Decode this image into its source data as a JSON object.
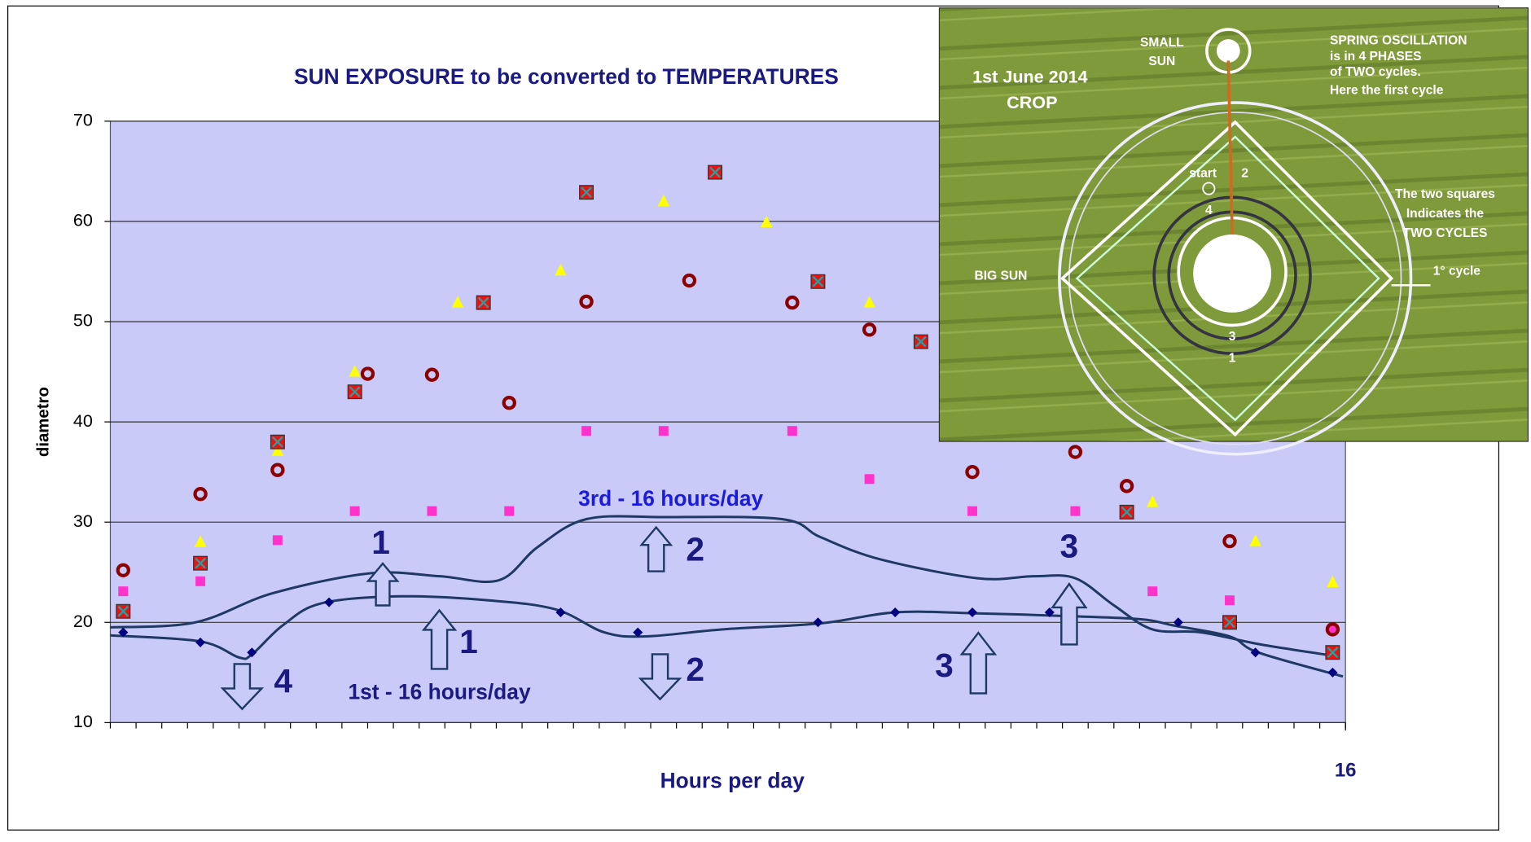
{
  "chart_data": {
    "type": "scatter",
    "title": "SUN EXPOSURE to be converted to TEMPERATURES",
    "xlabel": "Hours per day",
    "ylabel": "diametro",
    "xlim": [
      0,
      48
    ],
    "ylim": [
      10,
      70
    ],
    "yticks": [
      10,
      20,
      30,
      40,
      50,
      60,
      70
    ],
    "xticks": [
      {
        "value": 48,
        "label": "16"
      }
    ],
    "xminorticks": [
      0,
      1,
      2,
      3,
      4,
      5,
      6,
      7,
      8,
      9,
      10,
      11,
      12,
      13,
      14,
      15,
      16,
      17,
      18,
      19,
      20,
      21,
      22,
      23,
      24,
      25,
      26,
      27,
      28,
      29,
      30,
      31,
      32,
      33,
      34,
      35,
      36,
      37,
      38,
      39,
      40,
      41,
      42,
      43,
      44,
      45,
      46,
      47,
      48
    ],
    "grid": true,
    "series": [
      {
        "marker": "square",
        "color": "#ff33cc",
        "x": [
          0.5,
          3.5,
          6.5,
          9.5,
          12.5,
          15.5,
          18.5,
          21.5,
          26.5,
          29.5,
          33.5,
          37.5,
          40.5,
          43.5,
          47.5
        ],
        "values": [
          23.1,
          24.1,
          28.2,
          31.1,
          31.1,
          31.1,
          39.1,
          39.1,
          39.1,
          34.3,
          31.1,
          31.1,
          23.1,
          22.2,
          19.4
        ]
      },
      {
        "marker": "triangle",
        "color": "#ffff00",
        "x": [
          0.5,
          3.5,
          6.5,
          9.5,
          13.5,
          17.5,
          21.5,
          25.5,
          29.5,
          40.5,
          44.5,
          47.5
        ],
        "values": [
          21,
          28,
          37.1,
          45,
          51.9,
          55.1,
          62,
          59.9,
          51.9,
          32,
          28.1,
          24
        ]
      },
      {
        "marker": "boxx",
        "color": "#ee1111",
        "x": [
          0.5,
          3.5,
          6.5,
          9.5,
          14.5,
          18.5,
          23.5,
          27.5,
          31.5,
          39.5,
          43.5,
          47.5
        ],
        "values": [
          21.1,
          25.9,
          38,
          43,
          51.9,
          62.9,
          64.9,
          54,
          48,
          31,
          20,
          17
        ]
      },
      {
        "marker": "ring",
        "color": "#8b0000",
        "x": [
          0.5,
          3.5,
          6.5,
          10,
          12.5,
          15.5,
          18.5,
          22.5,
          26.5,
          29.5,
          33.5,
          37.5,
          39.5,
          43.5,
          47.5
        ],
        "values": [
          25.2,
          32.8,
          35.2,
          44.8,
          44.7,
          41.9,
          52,
          54.1,
          51.9,
          49.2,
          35,
          37,
          33.6,
          28.1,
          19.3
        ]
      },
      {
        "marker": "diamond",
        "color": "#000080",
        "x": [
          0.5,
          3.5,
          5.5,
          8.5,
          17.5,
          20.5,
          27.5,
          30.5,
          33.5,
          36.5,
          41.5,
          44.5,
          47.5
        ],
        "values": [
          19,
          18,
          17,
          22,
          21,
          19,
          20,
          21,
          21,
          21,
          20,
          17,
          15
        ]
      }
    ],
    "lines": [
      {
        "color": "#1f3864",
        "x": [
          0,
          3.5,
          5,
          5.5,
          6.7,
          8.2,
          11.3,
          14.7,
          17.3,
          19.2,
          20.8,
          23.8,
          27.6,
          30.5,
          33.7,
          37.5,
          40.1,
          41.3,
          43.5,
          44.6,
          47.9
        ],
        "values": [
          18.7,
          18.1,
          16.5,
          16.8,
          19.7,
          21.9,
          22.6,
          22.2,
          21.3,
          19,
          18.6,
          19.3,
          19.9,
          21,
          20.9,
          20.6,
          20.3,
          19.7,
          18.6,
          17,
          14.6
        ]
      },
      {
        "color": "#1f3864",
        "x": [
          0,
          3.3,
          6.3,
          10.1,
          12.8,
          15.1,
          16.6,
          18.5,
          21.5,
          26.1,
          27.6,
          29.9,
          33.7,
          35.9,
          37.5,
          39,
          40.5,
          42.4,
          44.7,
          47.7
        ],
        "values": [
          19.5,
          20,
          22.9,
          24.9,
          24.6,
          24.2,
          27.5,
          30.3,
          30.5,
          30.3,
          28.5,
          26.3,
          24.4,
          24.6,
          24.4,
          21.7,
          19.3,
          19,
          17.8,
          16.6
        ]
      }
    ],
    "annotations": [
      "1",
      "2",
      "3",
      "1",
      "2",
      "3",
      "4",
      "3rd - 16 hours/day",
      "1st - 16 hours/day"
    ]
  },
  "inset": {
    "small_sun": [
      "SMALL",
      "SUN"
    ],
    "crop": [
      "1st June 2014",
      "CROP"
    ],
    "spring": [
      "SPRING OSCILLATION",
      "is in 4 PHASES",
      "of TWO cycles.",
      "Here the first cycle"
    ],
    "squares": [
      "The two squares",
      "Indicates the",
      "TWO CYCLES"
    ],
    "big_sun": "BIG SUN",
    "cycle": "1° cycle",
    "phases": [
      "start",
      "2",
      "4",
      "3",
      "1"
    ]
  }
}
